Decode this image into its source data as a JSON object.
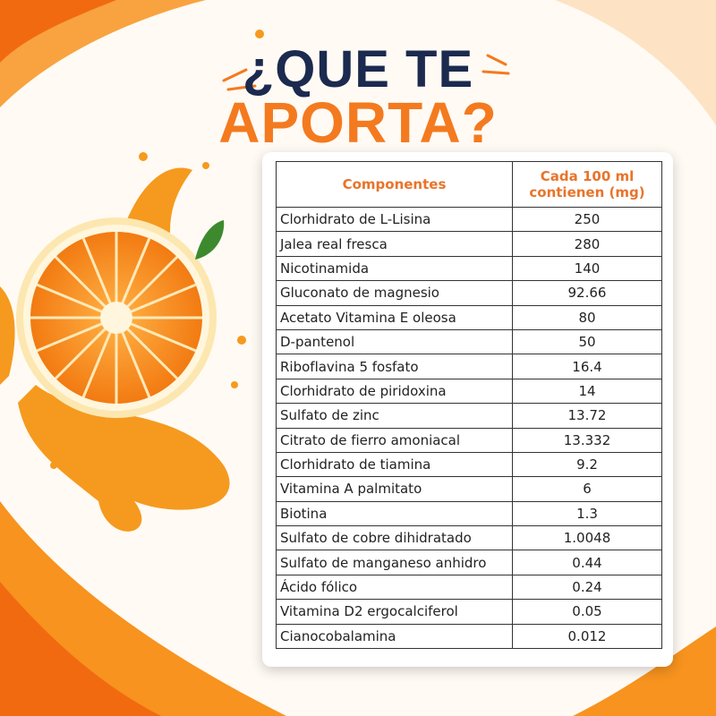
{
  "header": {
    "title_line1": "¿QUE TE",
    "title_line2": "APORTA?"
  },
  "table": {
    "columns": [
      "Componentes",
      "Cada 100 ml contienen (mg)"
    ],
    "rows": [
      [
        "Clorhidrato de L-Lisina",
        "250"
      ],
      [
        "Jalea real fresca",
        "280"
      ],
      [
        "Nicotinamida",
        "140"
      ],
      [
        "Gluconato de magnesio",
        "92.66"
      ],
      [
        "Acetato Vitamina E oleosa",
        "80"
      ],
      [
        "D-pantenol",
        "50"
      ],
      [
        "Riboflavina 5 fosfato",
        "16.4"
      ],
      [
        "Clorhidrato de piridoxina",
        "14"
      ],
      [
        "Sulfato de zinc",
        "13.72"
      ],
      [
        "Citrato de fierro amoniacal",
        "13.332"
      ],
      [
        "Clorhidrato de tiamina",
        "9.2"
      ],
      [
        "Vitamina A palmitato",
        "6"
      ],
      [
        "Biotina",
        "1.3"
      ],
      [
        "Sulfato de cobre dihidratado",
        "1.0048"
      ],
      [
        "Sulfato de manganeso anhidro",
        "0.44"
      ],
      [
        "Ácido fólico",
        "0.24"
      ],
      [
        "Vitamina D2 ergocalciferol",
        "0.05"
      ],
      [
        "Cianocobalamina",
        "0.012"
      ]
    ]
  }
}
